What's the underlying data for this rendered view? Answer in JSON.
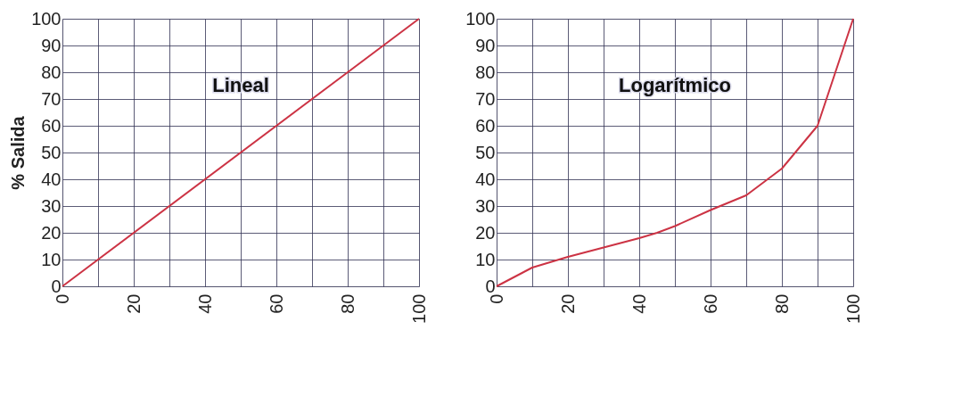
{
  "chart_data": [
    {
      "type": "line",
      "ylabel": "% Salida",
      "annotations": [
        "Lineal"
      ],
      "x": [
        0,
        100
      ],
      "series": [
        {
          "color": "#cc3344",
          "values": [
            0,
            100
          ]
        }
      ],
      "xlim": [
        0,
        100
      ],
      "ylim": [
        0,
        100
      ],
      "xticks": [
        0,
        {
          "value": 10,
          "label": null
        },
        20,
        {
          "value": 30,
          "label": null
        },
        40,
        {
          "value": 50,
          "label": null
        },
        60,
        {
          "value": 70,
          "label": null
        },
        80,
        {
          "value": 90,
          "label": null
        },
        100
      ],
      "yticks": [
        0,
        10,
        20,
        30,
        40,
        50,
        60,
        70,
        80,
        90,
        100
      ],
      "grid": true,
      "marker": "none",
      "line_style": "solid"
    },
    {
      "type": "line",
      "annotations": [
        "Logarítmico"
      ],
      "x": [
        0,
        10,
        20,
        30,
        40,
        45,
        50,
        60,
        70,
        80,
        90,
        100
      ],
      "series": [
        {
          "color": "#cc3344",
          "values": [
            0,
            7,
            11,
            14.5,
            18,
            20,
            22.5,
            28.5,
            34,
            44,
            60,
            100
          ]
        }
      ],
      "xlim": [
        0,
        100
      ],
      "ylim": [
        0,
        100
      ],
      "xticks": [
        0,
        {
          "value": 10,
          "label": null
        },
        20,
        {
          "value": 30,
          "label": null
        },
        40,
        {
          "value": 50,
          "label": null
        },
        60,
        {
          "value": 70,
          "label": null
        },
        80,
        {
          "value": 90,
          "label": null
        },
        100
      ],
      "yticks": [
        0,
        10,
        20,
        30,
        40,
        50,
        60,
        70,
        80,
        90,
        100
      ],
      "grid": true,
      "marker": "none",
      "line_style": "solid"
    }
  ]
}
